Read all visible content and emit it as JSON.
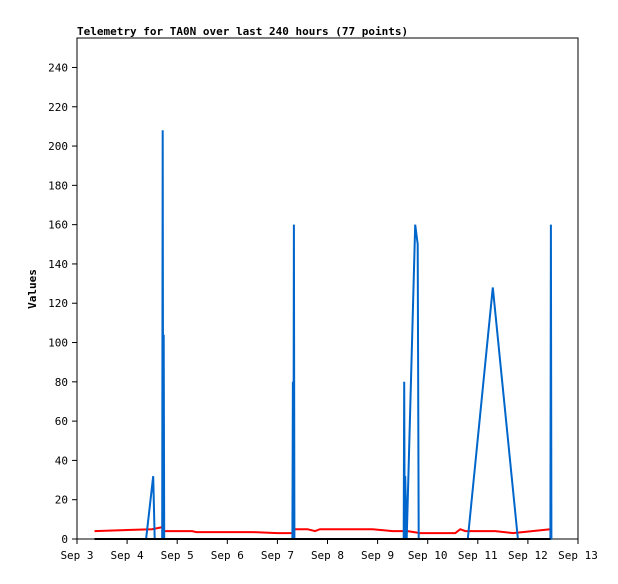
{
  "chart_data": {
    "type": "line",
    "title": "Telemetry for TA0N over last 240 hours (77 points)",
    "ylabel": "Values",
    "xlabel": "",
    "xlim": [
      "Sep 3",
      "Sep 13"
    ],
    "ylim": [
      0,
      255
    ],
    "x_ticks": [
      "Sep 3",
      "Sep 4",
      "Sep 5",
      "Sep 6",
      "Sep 7",
      "Sep 8",
      "Sep 9",
      "Sep 10",
      "Sep 11",
      "Sep 12",
      "Sep 13"
    ],
    "y_ticks": [
      0,
      20,
      40,
      60,
      80,
      100,
      120,
      140,
      160,
      180,
      200,
      220,
      240
    ],
    "grid": false,
    "legend": "none",
    "series": [
      {
        "color": "#ff0000",
        "points": [
          [
            3.35,
            4
          ],
          [
            4.5,
            5
          ],
          [
            4.7,
            6
          ],
          [
            4.72,
            4
          ],
          [
            5.3,
            4
          ],
          [
            5.38,
            3.5
          ],
          [
            6.5,
            3.5
          ],
          [
            7.0,
            3
          ],
          [
            7.3,
            3
          ],
          [
            7.35,
            5
          ],
          [
            7.6,
            5
          ],
          [
            7.75,
            4
          ],
          [
            7.85,
            5
          ],
          [
            8.4,
            5
          ],
          [
            8.9,
            5
          ],
          [
            9.3,
            4
          ],
          [
            9.6,
            4
          ],
          [
            9.85,
            3
          ],
          [
            10.55,
            3
          ],
          [
            10.65,
            5
          ],
          [
            10.75,
            4
          ],
          [
            11.35,
            4
          ],
          [
            11.7,
            3
          ],
          [
            12.45,
            5
          ]
        ]
      },
      {
        "color": "#0066cc",
        "points": [
          [
            4.38,
            0
          ],
          [
            4.52,
            32
          ],
          [
            4.55,
            0
          ],
          [
            4.7,
            0
          ],
          [
            4.71,
            208
          ],
          [
            4.72,
            0
          ],
          [
            4.73,
            104
          ],
          [
            4.74,
            0
          ],
          [
            7.3,
            0
          ],
          [
            7.31,
            80
          ],
          [
            7.32,
            0
          ],
          [
            7.33,
            160
          ],
          [
            7.34,
            0
          ],
          [
            9.52,
            0
          ],
          [
            9.53,
            80
          ],
          [
            9.54,
            0
          ],
          [
            9.55,
            32
          ],
          [
            9.58,
            0
          ],
          [
            9.75,
            160
          ],
          [
            9.8,
            150
          ],
          [
            9.82,
            0
          ],
          [
            10.8,
            0
          ],
          [
            11.3,
            128
          ],
          [
            11.8,
            0
          ],
          [
            12.45,
            0
          ],
          [
            12.46,
            160
          ],
          [
            12.47,
            0
          ]
        ]
      },
      {
        "color": "#000000",
        "points": [
          [
            3.35,
            0
          ],
          [
            12.45,
            0
          ]
        ]
      }
    ]
  }
}
